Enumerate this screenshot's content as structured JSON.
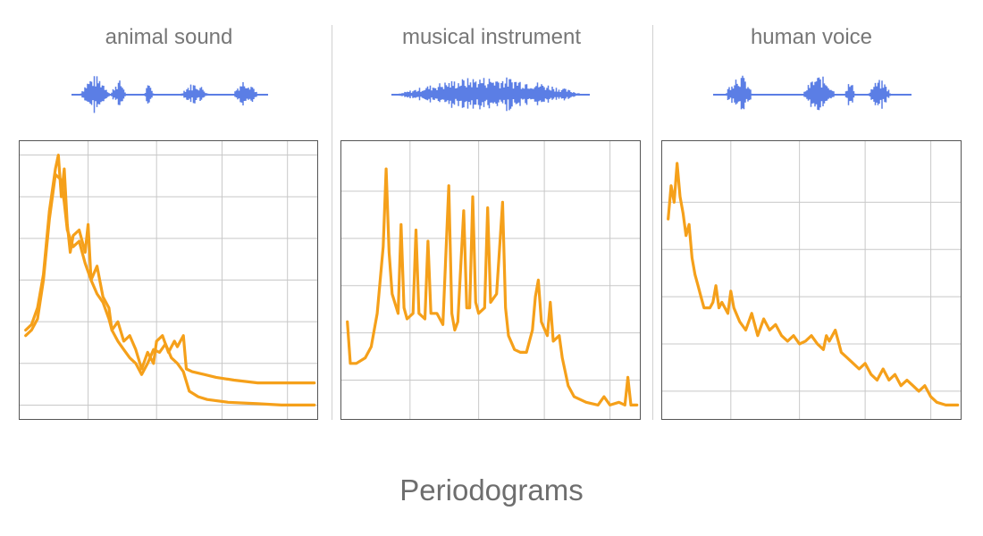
{
  "caption": "Periodograms",
  "colors": {
    "waveform": "#5b7ee5",
    "spectrum": "#f5a01a",
    "grid": "#c8c8c8",
    "frame": "#555555",
    "title": "#777777"
  },
  "chart_data": [
    {
      "type": "line",
      "title": "animal sound",
      "x_range": [
        0,
        1
      ],
      "y_range": [
        0,
        1
      ],
      "grid": true,
      "x_gridlines": [
        0.23,
        0.46,
        0.68,
        0.9
      ],
      "y_gridlines": [
        0.05,
        0.2,
        0.35,
        0.5,
        0.65,
        0.8,
        0.95
      ],
      "series": [
        {
          "values": [
            [
              0.02,
              0.32
            ],
            [
              0.04,
              0.34
            ],
            [
              0.06,
              0.4
            ],
            [
              0.08,
              0.52
            ],
            [
              0.1,
              0.75
            ],
            [
              0.12,
              0.9
            ],
            [
              0.13,
              0.95
            ],
            [
              0.14,
              0.8
            ],
            [
              0.15,
              0.9
            ],
            [
              0.16,
              0.7
            ],
            [
              0.17,
              0.6
            ],
            [
              0.18,
              0.66
            ],
            [
              0.2,
              0.68
            ],
            [
              0.22,
              0.6
            ],
            [
              0.23,
              0.7
            ],
            [
              0.24,
              0.5
            ],
            [
              0.26,
              0.55
            ],
            [
              0.28,
              0.44
            ],
            [
              0.3,
              0.4
            ],
            [
              0.31,
              0.32
            ],
            [
              0.33,
              0.35
            ],
            [
              0.35,
              0.28
            ],
            [
              0.37,
              0.3
            ],
            [
              0.39,
              0.25
            ],
            [
              0.41,
              0.18
            ],
            [
              0.43,
              0.24
            ],
            [
              0.45,
              0.2
            ],
            [
              0.46,
              0.28
            ],
            [
              0.48,
              0.3
            ],
            [
              0.5,
              0.24
            ],
            [
              0.52,
              0.28
            ],
            [
              0.53,
              0.26
            ],
            [
              0.55,
              0.3
            ],
            [
              0.56,
              0.18
            ],
            [
              0.58,
              0.17
            ],
            [
              0.62,
              0.16
            ],
            [
              0.66,
              0.15
            ],
            [
              0.72,
              0.14
            ],
            [
              0.8,
              0.13
            ],
            [
              0.88,
              0.13
            ],
            [
              0.99,
              0.13
            ]
          ]
        },
        {
          "values": [
            [
              0.02,
              0.3
            ],
            [
              0.04,
              0.32
            ],
            [
              0.06,
              0.36
            ],
            [
              0.08,
              0.5
            ],
            [
              0.1,
              0.72
            ],
            [
              0.12,
              0.88
            ],
            [
              0.14,
              0.86
            ],
            [
              0.15,
              0.78
            ],
            [
              0.16,
              0.68
            ],
            [
              0.18,
              0.62
            ],
            [
              0.2,
              0.64
            ],
            [
              0.22,
              0.56
            ],
            [
              0.24,
              0.5
            ],
            [
              0.26,
              0.45
            ],
            [
              0.28,
              0.42
            ],
            [
              0.3,
              0.36
            ],
            [
              0.31,
              0.32
            ],
            [
              0.33,
              0.28
            ],
            [
              0.35,
              0.25
            ],
            [
              0.37,
              0.22
            ],
            [
              0.39,
              0.2
            ],
            [
              0.41,
              0.16
            ],
            [
              0.43,
              0.2
            ],
            [
              0.45,
              0.25
            ],
            [
              0.47,
              0.24
            ],
            [
              0.49,
              0.27
            ],
            [
              0.51,
              0.22
            ],
            [
              0.53,
              0.2
            ],
            [
              0.55,
              0.17
            ],
            [
              0.57,
              0.1
            ],
            [
              0.6,
              0.08
            ],
            [
              0.63,
              0.07
            ],
            [
              0.7,
              0.06
            ],
            [
              0.8,
              0.055
            ],
            [
              0.88,
              0.05
            ],
            [
              0.99,
              0.05
            ]
          ]
        }
      ]
    },
    {
      "type": "line",
      "title": "musical instrument",
      "x_range": [
        0,
        1
      ],
      "y_range": [
        0,
        1
      ],
      "grid": true,
      "x_gridlines": [
        0.23,
        0.46,
        0.68,
        0.9
      ],
      "y_gridlines": [
        0.14,
        0.31,
        0.48,
        0.65,
        0.82
      ],
      "series": [
        {
          "values": [
            [
              0.02,
              0.35
            ],
            [
              0.03,
              0.2
            ],
            [
              0.05,
              0.2
            ],
            [
              0.08,
              0.22
            ],
            [
              0.1,
              0.26
            ],
            [
              0.12,
              0.38
            ],
            [
              0.14,
              0.62
            ],
            [
              0.15,
              0.9
            ],
            [
              0.16,
              0.6
            ],
            [
              0.17,
              0.45
            ],
            [
              0.19,
              0.38
            ],
            [
              0.2,
              0.7
            ],
            [
              0.21,
              0.4
            ],
            [
              0.22,
              0.36
            ],
            [
              0.24,
              0.38
            ],
            [
              0.25,
              0.68
            ],
            [
              0.26,
              0.38
            ],
            [
              0.28,
              0.36
            ],
            [
              0.29,
              0.64
            ],
            [
              0.3,
              0.38
            ],
            [
              0.32,
              0.38
            ],
            [
              0.34,
              0.34
            ],
            [
              0.36,
              0.84
            ],
            [
              0.37,
              0.38
            ],
            [
              0.38,
              0.32
            ],
            [
              0.39,
              0.35
            ],
            [
              0.41,
              0.75
            ],
            [
              0.42,
              0.4
            ],
            [
              0.43,
              0.4
            ],
            [
              0.44,
              0.8
            ],
            [
              0.45,
              0.42
            ],
            [
              0.46,
              0.38
            ],
            [
              0.48,
              0.4
            ],
            [
              0.49,
              0.76
            ],
            [
              0.5,
              0.42
            ],
            [
              0.52,
              0.45
            ],
            [
              0.54,
              0.78
            ],
            [
              0.55,
              0.4
            ],
            [
              0.56,
              0.3
            ],
            [
              0.58,
              0.25
            ],
            [
              0.6,
              0.24
            ],
            [
              0.62,
              0.24
            ],
            [
              0.64,
              0.32
            ],
            [
              0.65,
              0.44
            ],
            [
              0.66,
              0.5
            ],
            [
              0.67,
              0.35
            ],
            [
              0.69,
              0.3
            ],
            [
              0.7,
              0.42
            ],
            [
              0.71,
              0.28
            ],
            [
              0.73,
              0.3
            ],
            [
              0.74,
              0.22
            ],
            [
              0.76,
              0.12
            ],
            [
              0.78,
              0.08
            ],
            [
              0.82,
              0.06
            ],
            [
              0.86,
              0.05
            ],
            [
              0.88,
              0.08
            ],
            [
              0.9,
              0.05
            ],
            [
              0.93,
              0.06
            ],
            [
              0.95,
              0.05
            ],
            [
              0.96,
              0.15
            ],
            [
              0.97,
              0.05
            ],
            [
              0.99,
              0.05
            ]
          ]
        }
      ]
    },
    {
      "type": "line",
      "title": "human voice",
      "x_range": [
        0,
        1
      ],
      "y_range": [
        0,
        1
      ],
      "grid": true,
      "x_gridlines": [
        0.23,
        0.46,
        0.68,
        0.9
      ],
      "y_gridlines": [
        0.1,
        0.27,
        0.44,
        0.61,
        0.78
      ],
      "series": [
        {
          "values": [
            [
              0.02,
              0.72
            ],
            [
              0.03,
              0.84
            ],
            [
              0.04,
              0.78
            ],
            [
              0.05,
              0.92
            ],
            [
              0.06,
              0.8
            ],
            [
              0.07,
              0.74
            ],
            [
              0.08,
              0.66
            ],
            [
              0.09,
              0.7
            ],
            [
              0.1,
              0.58
            ],
            [
              0.11,
              0.52
            ],
            [
              0.12,
              0.48
            ],
            [
              0.13,
              0.44
            ],
            [
              0.14,
              0.4
            ],
            [
              0.16,
              0.4
            ],
            [
              0.17,
              0.42
            ],
            [
              0.18,
              0.48
            ],
            [
              0.19,
              0.4
            ],
            [
              0.2,
              0.42
            ],
            [
              0.22,
              0.38
            ],
            [
              0.23,
              0.46
            ],
            [
              0.24,
              0.4
            ],
            [
              0.26,
              0.35
            ],
            [
              0.28,
              0.32
            ],
            [
              0.3,
              0.38
            ],
            [
              0.32,
              0.3
            ],
            [
              0.34,
              0.36
            ],
            [
              0.36,
              0.32
            ],
            [
              0.38,
              0.34
            ],
            [
              0.4,
              0.3
            ],
            [
              0.42,
              0.28
            ],
            [
              0.44,
              0.3
            ],
            [
              0.46,
              0.27
            ],
            [
              0.48,
              0.28
            ],
            [
              0.5,
              0.3
            ],
            [
              0.52,
              0.27
            ],
            [
              0.54,
              0.25
            ],
            [
              0.55,
              0.3
            ],
            [
              0.56,
              0.28
            ],
            [
              0.58,
              0.32
            ],
            [
              0.6,
              0.24
            ],
            [
              0.62,
              0.22
            ],
            [
              0.64,
              0.2
            ],
            [
              0.66,
              0.18
            ],
            [
              0.68,
              0.2
            ],
            [
              0.7,
              0.16
            ],
            [
              0.72,
              0.14
            ],
            [
              0.74,
              0.18
            ],
            [
              0.76,
              0.14
            ],
            [
              0.78,
              0.16
            ],
            [
              0.8,
              0.12
            ],
            [
              0.82,
              0.14
            ],
            [
              0.84,
              0.12
            ],
            [
              0.86,
              0.1
            ],
            [
              0.88,
              0.12
            ],
            [
              0.9,
              0.08
            ],
            [
              0.92,
              0.06
            ],
            [
              0.95,
              0.05
            ],
            [
              0.99,
              0.05
            ]
          ]
        }
      ]
    }
  ]
}
